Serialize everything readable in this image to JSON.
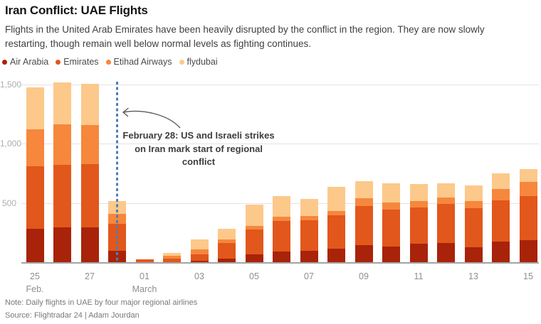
{
  "header": {
    "title": "Iran Conflict: UAE Flights",
    "subtitle_lines": [
      "Flights in the United Arab Emirates have been heavily disrupted by the conflict in the region. They are now slowly",
      "restarting, though remain well below normal levels as fighting continues."
    ]
  },
  "legend": [
    {
      "label": "Air Arabia",
      "color": "#a82309"
    },
    {
      "label": "Emirates",
      "color": "#e2571b"
    },
    {
      "label": "Etihad Airways",
      "color": "#f6873d"
    },
    {
      "label": "flydubai",
      "color": "#fcc98b"
    }
  ],
  "chart_data": {
    "type": "bar",
    "stacked": true,
    "title": "Iran Conflict: UAE Flights",
    "ylabel": "Daily flights",
    "ylim": [
      0,
      1500
    ],
    "grid": "horizontal",
    "legend_position": "top-left",
    "categories": [
      "Feb 25",
      "Feb 26",
      "Feb 27",
      "Feb 28",
      "Mar 01",
      "Mar 02",
      "Mar 03",
      "Mar 04",
      "Mar 05",
      "Mar 06",
      "Mar 07",
      "Mar 08",
      "Mar 09",
      "Mar 10",
      "Mar 11",
      "Mar 12",
      "Mar 13",
      "Mar 14",
      "Mar 15"
    ],
    "series": [
      {
        "name": "Air Arabia",
        "color": "#a82309",
        "values": [
          290,
          300,
          300,
          105,
          0,
          5,
          20,
          35,
          70,
          95,
          100,
          120,
          150,
          140,
          165,
          170,
          135,
          180,
          195
        ]
      },
      {
        "name": "Emirates",
        "color": "#e2571b",
        "values": [
          525,
          530,
          535,
          225,
          30,
          30,
          55,
          135,
          215,
          260,
          260,
          285,
          330,
          310,
          305,
          330,
          325,
          350,
          370
        ]
      },
      {
        "name": "Etihad Airways",
        "color": "#f6873d",
        "values": [
          315,
          340,
          330,
          85,
          0,
          25,
          40,
          30,
          30,
          35,
          35,
          35,
          65,
          60,
          55,
          50,
          65,
          95,
          120
        ]
      },
      {
        "name": "flydubai",
        "color": "#fcc98b",
        "values": [
          350,
          355,
          350,
          105,
          0,
          25,
          85,
          90,
          175,
          175,
          145,
          200,
          145,
          165,
          140,
          125,
          130,
          130,
          105
        ]
      }
    ],
    "totals": [
      1480,
      1525,
      1515,
      520,
      30,
      85,
      200,
      290,
      490,
      565,
      540,
      640,
      690,
      675,
      665,
      675,
      655,
      755,
      790
    ],
    "x_tick_labels": [
      "25",
      "",
      "27",
      "",
      "01",
      "",
      "03",
      "",
      "05",
      "",
      "07",
      "",
      "09",
      "",
      "11",
      "",
      "13",
      "",
      "15"
    ],
    "month_labels": [
      {
        "index": 0,
        "label": "Feb."
      },
      {
        "index": 4,
        "label": "March"
      }
    ],
    "y_ticks": [
      {
        "value": 500,
        "label": "500"
      },
      {
        "value": 1000,
        "label": "1,000"
      },
      {
        "value": 1500,
        "label": "1,500"
      }
    ],
    "event_line": {
      "category": "Feb 28",
      "category_index": 3,
      "color": "#4e7eb5"
    },
    "annotation": {
      "lines": [
        "February 28: US and Israeli strikes",
        "on Iran mark start of regional",
        "conflict"
      ]
    }
  },
  "footer": {
    "note": "Note: Daily flights in UAE by four major regional airlines",
    "source": "Source: Flightradar 24 | Adam Jourdan"
  }
}
